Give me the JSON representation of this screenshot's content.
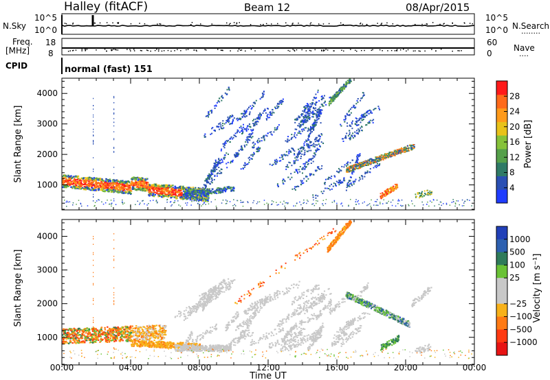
{
  "header": {
    "station": "Halley (fitACF)",
    "beam": "Beam 12",
    "date": "08/Apr/2015"
  },
  "side_labels": {
    "nsky": "N.Sky",
    "freq_line1": "Freq.",
    "freq_line2": "[MHz]",
    "cpid": "CPID",
    "nsearch": "N.Search",
    "nsearch_dots": "........",
    "nave": "Nave",
    "nave_dots": "...."
  },
  "cpid_text": "normal (fast) 151",
  "noise_panel": {
    "left_ticks": [
      "10^5",
      "10^0"
    ],
    "right_ticks": [
      "10^5",
      "10^0"
    ]
  },
  "freq_panel": {
    "left_ticks": [
      "18",
      "8"
    ],
    "right_ticks": [
      "60",
      "0"
    ]
  },
  "colors": {
    "power_scale": [
      "#1f3cff",
      "#2a4fb3",
      "#2f7a66",
      "#55a04a",
      "#86c23a",
      "#e8c21a",
      "#ff9a1a",
      "#ff6a1a",
      "#ff1a1a"
    ],
    "velocity_scale": [
      "#2140b8",
      "#2d60b0",
      "#2f7b5a",
      "#6ac236",
      "#c8c8c8",
      "#c8c8c8",
      "#f7b11a",
      "#ff7a14",
      "#ff3a12",
      "#e81414"
    ]
  },
  "chart_data": [
    {
      "type": "heatmap",
      "name": "power",
      "xlabel": "Time UT",
      "ylabel": "Slant Range [km]",
      "x_ticks": [
        "00:00",
        "04:00",
        "08:00",
        "12:00",
        "16:00",
        "20:00",
        "00:00"
      ],
      "y_ticks": [
        "1000",
        "2000",
        "3000",
        "4000"
      ],
      "ylim": [
        180,
        4500
      ],
      "xlim_hours": [
        0,
        24
      ],
      "colorbar_label": "Power [dB]",
      "colorbar_ticks": [
        "4",
        "8",
        "12",
        "16",
        "20",
        "24",
        "28"
      ],
      "colorbar_range": [
        0,
        32
      ]
    },
    {
      "type": "heatmap",
      "name": "velocity",
      "xlabel": "Time UT",
      "ylabel": "Slant Range [km]",
      "x_ticks": [
        "00:00",
        "04:00",
        "08:00",
        "12:00",
        "16:00",
        "20:00",
        "00:00"
      ],
      "y_ticks": [
        "1000",
        "2000",
        "3000",
        "4000"
      ],
      "ylim": [
        180,
        4500
      ],
      "xlim_hours": [
        0,
        24
      ],
      "colorbar_label": "Velocity [m s⁻¹]",
      "colorbar_ticks": [
        "1000",
        "500",
        "100",
        "25",
        "−25",
        "−100",
        "−500",
        "−1000"
      ]
    }
  ]
}
